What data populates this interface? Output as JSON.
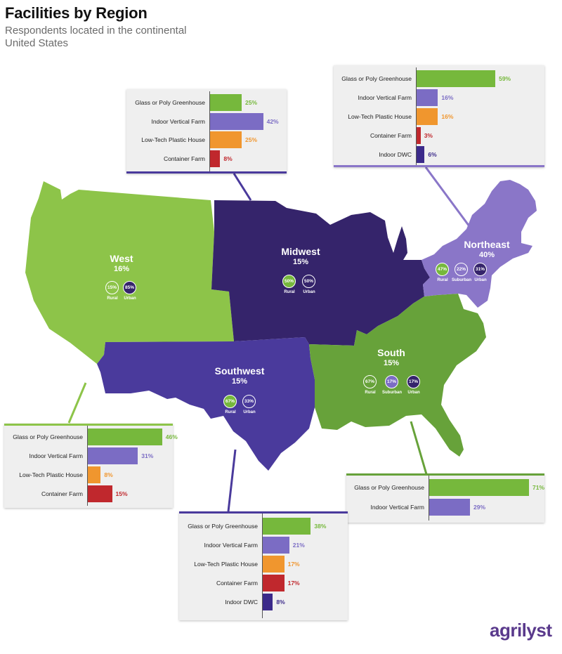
{
  "header": {
    "title": "Facilities by Region",
    "subtitle": "Respondents located in the continental United States"
  },
  "colors": {
    "glass": "#76b83c",
    "indoor_vertical": "#7b6cc4",
    "low_tech": "#f0962e",
    "container": "#c0282d",
    "indoor_dwc": "#3b2a8a",
    "west_region": "#8dc449",
    "midwest_region": "#35246b",
    "southwest_region": "#4a3a9c",
    "south_region": "#67a23a",
    "northeast_region": "#8a76c8",
    "accent_line": "#4a3a9c"
  },
  "regions": {
    "west": {
      "name": "West",
      "pct": "16%",
      "circles": [
        {
          "value": "15%",
          "label": "Rural",
          "fill": ""
        },
        {
          "value": "85%",
          "label": "Urban",
          "fill": "#35246b"
        }
      ]
    },
    "midwest": {
      "name": "Midwest",
      "pct": "15%",
      "circles": [
        {
          "value": "50%",
          "label": "Rural",
          "fill": "#76b83c"
        },
        {
          "value": "50%",
          "label": "Urban",
          "fill": ""
        }
      ]
    },
    "northeast": {
      "name": "Northeast",
      "pct": "40%",
      "circles": [
        {
          "value": "47%",
          "label": "Rural",
          "fill": "#76b83c"
        },
        {
          "value": "22%",
          "label": "Suburban",
          "fill": ""
        },
        {
          "value": "31%",
          "label": "Urban",
          "fill": "#35246b"
        }
      ]
    },
    "southwest": {
      "name": "Southwest",
      "pct": "15%",
      "circles": [
        {
          "value": "67%",
          "label": "Rural",
          "fill": "#76b83c"
        },
        {
          "value": "33%",
          "label": "Urban",
          "fill": ""
        }
      ]
    },
    "south": {
      "name": "South",
      "pct": "15%",
      "circles": [
        {
          "value": "67%",
          "label": "Rural",
          "fill": ""
        },
        {
          "value": "17%",
          "label": "Suburban",
          "fill": "#7b6cc4"
        },
        {
          "value": "17%",
          "label": "Urban",
          "fill": "#35246b"
        }
      ]
    }
  },
  "panels": {
    "midwest": {
      "rows": [
        {
          "label": "Glass or Poly Greenhouse",
          "value": 25,
          "text": "25%",
          "type": "glass"
        },
        {
          "label": "Indoor Vertical Farm",
          "value": 42,
          "text": "42%",
          "type": "indoor_vertical"
        },
        {
          "label": "Low-Tech Plastic House",
          "value": 25,
          "text": "25%",
          "type": "low_tech"
        },
        {
          "label": "Container Farm",
          "value": 8,
          "text": "8%",
          "type": "container"
        }
      ]
    },
    "northeast": {
      "rows": [
        {
          "label": "Glass or Poly Greenhouse",
          "value": 59,
          "text": "59%",
          "type": "glass"
        },
        {
          "label": "Indoor Vertical Farm",
          "value": 16,
          "text": "16%",
          "type": "indoor_vertical"
        },
        {
          "label": "Low-Tech Plastic House",
          "value": 16,
          "text": "16%",
          "type": "low_tech"
        },
        {
          "label": "Container Farm",
          "value": 3,
          "text": "3%",
          "type": "container"
        },
        {
          "label": "Indoor DWC",
          "value": 6,
          "text": "6%",
          "type": "indoor_dwc"
        }
      ]
    },
    "west": {
      "rows": [
        {
          "label": "Glass or Poly Greenhouse",
          "value": 46,
          "text": "46%",
          "type": "glass"
        },
        {
          "label": "Indoor Vertical Farm",
          "value": 31,
          "text": "31%",
          "type": "indoor_vertical"
        },
        {
          "label": "Low-Tech Plastic House",
          "value": 8,
          "text": "8%",
          "type": "low_tech"
        },
        {
          "label": "Container Farm",
          "value": 15,
          "text": "15%",
          "type": "container"
        }
      ]
    },
    "south": {
      "rows": [
        {
          "label": "Glass or Poly Greenhouse",
          "value": 71,
          "text": "71%",
          "type": "glass"
        },
        {
          "label": "Indoor Vertical Farm",
          "value": 29,
          "text": "29%",
          "type": "indoor_vertical"
        }
      ]
    },
    "southwest": {
      "rows": [
        {
          "label": "Glass or Poly Greenhouse",
          "value": 38,
          "text": "38%",
          "type": "glass"
        },
        {
          "label": "Indoor Vertical Farm",
          "value": 21,
          "text": "21%",
          "type": "indoor_vertical"
        },
        {
          "label": "Low-Tech Plastic House",
          "value": 17,
          "text": "17%",
          "type": "low_tech"
        },
        {
          "label": "Container Farm",
          "value": 17,
          "text": "17%",
          "type": "container"
        },
        {
          "label": "Indoor DWC",
          "value": 8,
          "text": "8%",
          "type": "indoor_dwc"
        }
      ]
    }
  },
  "logo": {
    "text": "agrilyst"
  }
}
